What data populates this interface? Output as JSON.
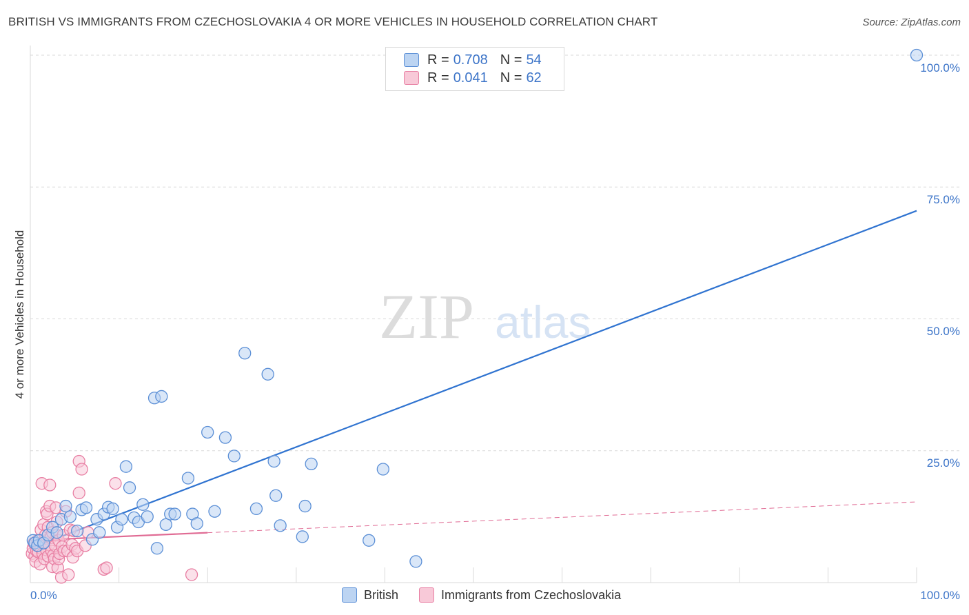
{
  "header": {
    "title": "BRITISH VS IMMIGRANTS FROM CZECHOSLOVAKIA 4 OR MORE VEHICLES IN HOUSEHOLD CORRELATION CHART",
    "source": "Source: ZipAtlas.com"
  },
  "legend": {
    "british": {
      "r_label": "R =",
      "r_value": "0.708",
      "n_label": "N =",
      "n_value": "54"
    },
    "czech": {
      "r_label": "R =",
      "r_value": "0.041",
      "n_label": "N =",
      "n_value": "62"
    }
  },
  "bottom_legend": {
    "british": "British",
    "czech": "Immigrants from Czechoslovakia"
  },
  "watermark": {
    "zip": "ZIP",
    "atlas": "atlas"
  },
  "colors": {
    "blue_stroke": "#5b8fd6",
    "blue_fill": "#bcd4f2",
    "blue_line": "#2f73d0",
    "pink_stroke": "#e87fa3",
    "pink_fill": "#f8c9d8",
    "pink_line": "#e06b94",
    "grid": "#d8d8d8",
    "label": "#3c74c8"
  },
  "chart_data": {
    "type": "scatter",
    "title": "BRITISH VS IMMIGRANTS FROM CZECHOSLOVAKIA 4 OR MORE VEHICLES IN HOUSEHOLD CORRELATION CHART",
    "ylabel": "4 or more Vehicles in Household",
    "xlabel": "",
    "x_tick_labels": [
      "0.0%",
      "100.0%"
    ],
    "y_tick_labels": [
      "25.0%",
      "50.0%",
      "75.0%",
      "100.0%"
    ],
    "xlim": [
      0,
      100
    ],
    "ylim": [
      0,
      100
    ],
    "series": [
      {
        "name": "British",
        "r": 0.708,
        "n": 54,
        "trend": {
          "x": [
            0,
            100
          ],
          "y": [
            6.5,
            70.5
          ],
          "style": "solid"
        },
        "points": [
          [
            0.3,
            8.0
          ],
          [
            0.5,
            7.5
          ],
          [
            0.8,
            7.0
          ],
          [
            1.0,
            8.0
          ],
          [
            1.5,
            7.5
          ],
          [
            2.0,
            9.0
          ],
          [
            2.5,
            10.5
          ],
          [
            3.0,
            9.5
          ],
          [
            3.5,
            12.0
          ],
          [
            4.0,
            14.5
          ],
          [
            4.5,
            12.5
          ],
          [
            5.3,
            9.8
          ],
          [
            5.8,
            13.8
          ],
          [
            6.3,
            14.2
          ],
          [
            7.0,
            8.2
          ],
          [
            7.5,
            12.0
          ],
          [
            7.8,
            9.5
          ],
          [
            8.3,
            13.0
          ],
          [
            8.8,
            14.3
          ],
          [
            9.3,
            14.0
          ],
          [
            9.8,
            10.5
          ],
          [
            10.3,
            12.0
          ],
          [
            10.8,
            22.0
          ],
          [
            11.2,
            18.0
          ],
          [
            11.7,
            12.3
          ],
          [
            12.2,
            11.5
          ],
          [
            12.7,
            14.8
          ],
          [
            13.2,
            12.5
          ],
          [
            14.0,
            35.0
          ],
          [
            14.3,
            6.5
          ],
          [
            14.8,
            35.3
          ],
          [
            15.3,
            11.0
          ],
          [
            15.8,
            13.0
          ],
          [
            16.3,
            13.0
          ],
          [
            17.8,
            19.8
          ],
          [
            18.3,
            13.0
          ],
          [
            18.8,
            11.2
          ],
          [
            20.0,
            28.5
          ],
          [
            20.8,
            13.5
          ],
          [
            22.0,
            27.5
          ],
          [
            23.0,
            24.0
          ],
          [
            24.2,
            43.5
          ],
          [
            25.5,
            14.0
          ],
          [
            26.8,
            39.5
          ],
          [
            27.5,
            23.0
          ],
          [
            27.7,
            16.5
          ],
          [
            28.2,
            10.8
          ],
          [
            30.7,
            8.7
          ],
          [
            31.0,
            14.5
          ],
          [
            31.7,
            22.5
          ],
          [
            38.2,
            8.0
          ],
          [
            39.8,
            21.5
          ],
          [
            43.5,
            4.0
          ],
          [
            100.0,
            100.0
          ]
        ]
      },
      {
        "name": "Immigrants from Czechoslovakia",
        "r": 0.041,
        "n": 62,
        "trend": {
          "x": [
            0,
            100
          ],
          "y": [
            8.0,
            15.3
          ],
          "solid_until_x": 20,
          "style": "solid-then-dashed"
        },
        "points": [
          [
            0.2,
            5.5
          ],
          [
            0.3,
            6.5
          ],
          [
            0.4,
            7.5
          ],
          [
            0.5,
            5.0
          ],
          [
            0.6,
            4.0
          ],
          [
            0.7,
            6.0
          ],
          [
            0.8,
            8.0
          ],
          [
            0.9,
            5.8
          ],
          [
            1.0,
            7.0
          ],
          [
            1.1,
            3.5
          ],
          [
            1.2,
            6.5
          ],
          [
            1.2,
            10.0
          ],
          [
            1.3,
            18.8
          ],
          [
            1.4,
            5.5
          ],
          [
            1.5,
            7.8
          ],
          [
            1.5,
            11.0
          ],
          [
            1.6,
            4.5
          ],
          [
            1.7,
            9.0
          ],
          [
            1.8,
            6.2
          ],
          [
            1.8,
            13.5
          ],
          [
            1.9,
            13.0
          ],
          [
            2.0,
            5.0
          ],
          [
            2.0,
            10.5
          ],
          [
            2.1,
            7.2
          ],
          [
            2.2,
            14.5
          ],
          [
            2.2,
            18.5
          ],
          [
            2.3,
            8.5
          ],
          [
            2.4,
            6.0
          ],
          [
            2.5,
            3.0
          ],
          [
            2.5,
            9.5
          ],
          [
            2.6,
            5.2
          ],
          [
            2.7,
            4.5
          ],
          [
            2.8,
            7.0
          ],
          [
            2.9,
            14.2
          ],
          [
            3.0,
            9.0
          ],
          [
            3.0,
            11.5
          ],
          [
            3.1,
            2.8
          ],
          [
            3.2,
            4.5
          ],
          [
            3.2,
            8.0
          ],
          [
            3.3,
            5.5
          ],
          [
            3.5,
            1.0
          ],
          [
            3.6,
            6.8
          ],
          [
            3.7,
            9.0
          ],
          [
            3.8,
            6.0
          ],
          [
            4.0,
            13.5
          ],
          [
            4.2,
            6.0
          ],
          [
            4.3,
            1.5
          ],
          [
            4.5,
            10.0
          ],
          [
            4.7,
            7.2
          ],
          [
            4.8,
            4.8
          ],
          [
            4.9,
            9.8
          ],
          [
            5.1,
            6.5
          ],
          [
            5.3,
            6.0
          ],
          [
            5.5,
            17.0
          ],
          [
            5.5,
            23.0
          ],
          [
            5.8,
            21.5
          ],
          [
            6.2,
            7.0
          ],
          [
            6.5,
            9.5
          ],
          [
            8.3,
            2.5
          ],
          [
            8.6,
            2.8
          ],
          [
            9.6,
            18.8
          ],
          [
            18.2,
            1.5
          ]
        ]
      }
    ]
  }
}
